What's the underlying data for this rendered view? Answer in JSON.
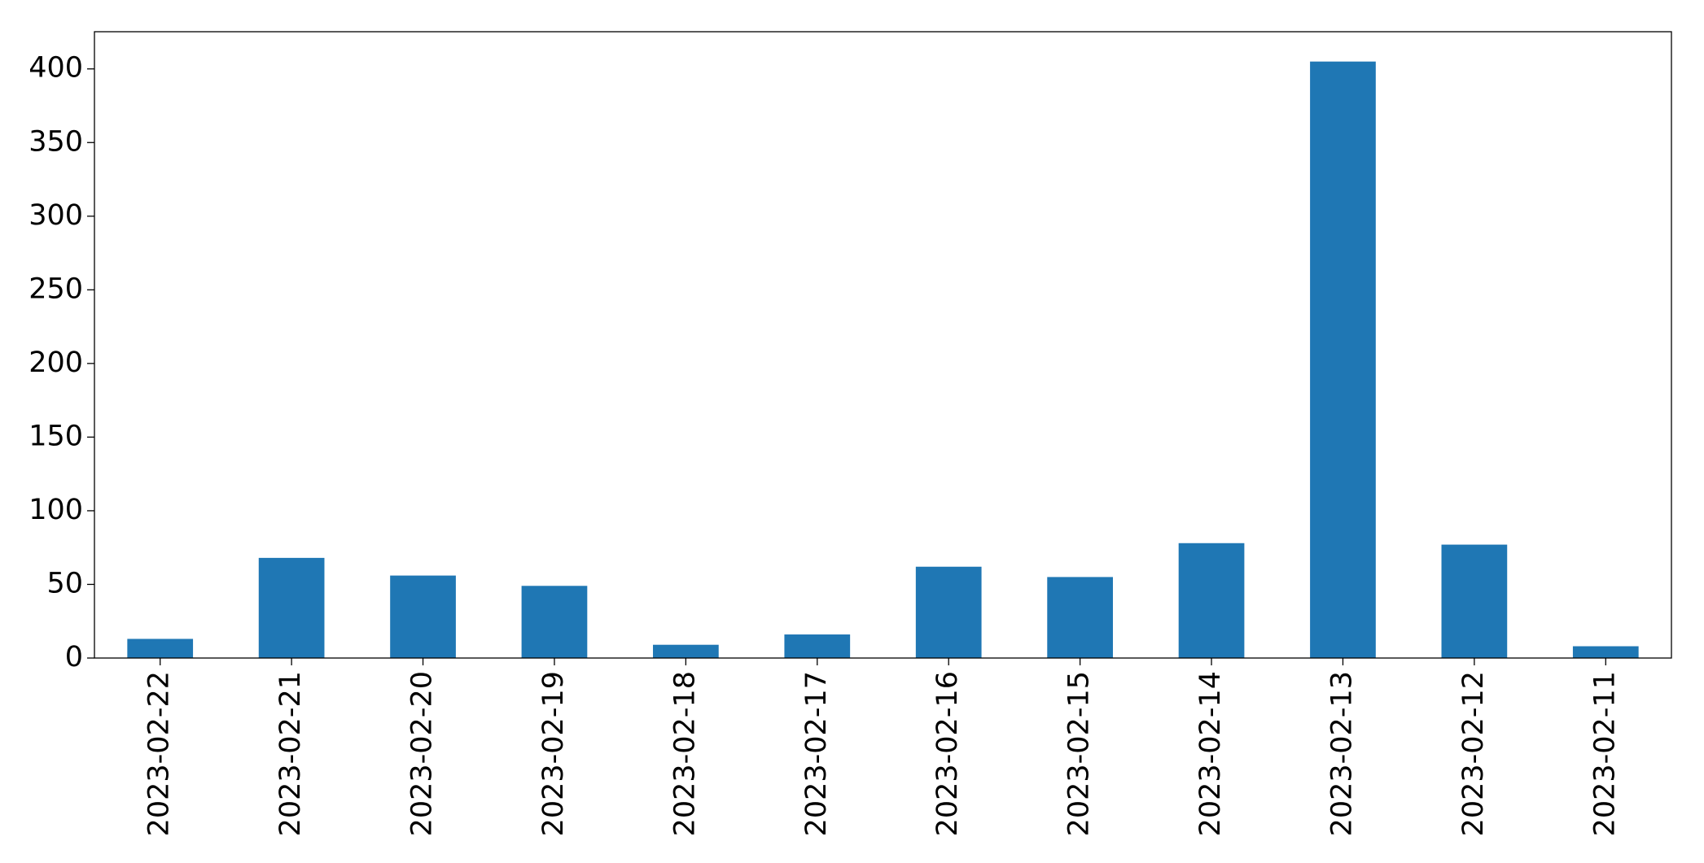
{
  "chart_data": {
    "type": "bar",
    "categories": [
      "2023-02-22",
      "2023-02-21",
      "2023-02-20",
      "2023-02-19",
      "2023-02-18",
      "2023-02-17",
      "2023-02-16",
      "2023-02-15",
      "2023-02-14",
      "2023-02-13",
      "2023-02-12",
      "2023-02-11"
    ],
    "values": [
      13,
      68,
      56,
      49,
      9,
      16,
      62,
      55,
      78,
      405,
      77,
      8
    ],
    "color": "#1f77b4",
    "ylim": [
      0,
      425.25
    ],
    "yticks": [
      0,
      50,
      100,
      150,
      200,
      250,
      300,
      350,
      400
    ],
    "grid": false
  }
}
